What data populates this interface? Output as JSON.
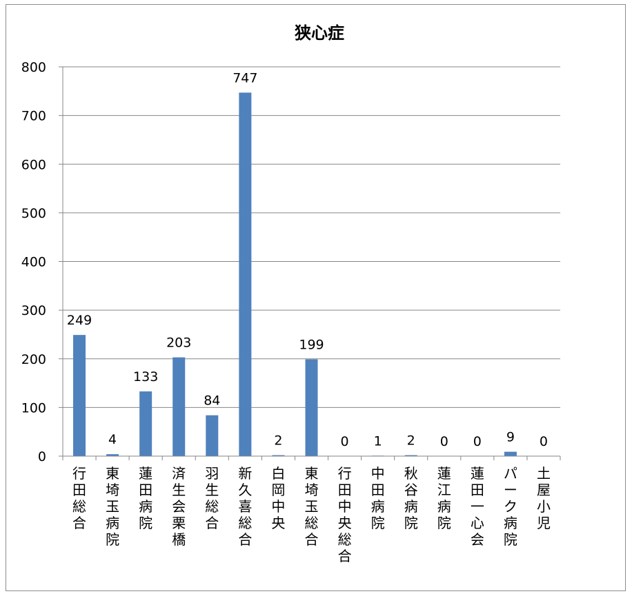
{
  "chart_data": {
    "type": "bar",
    "title": "狭心症",
    "categories": [
      "行田総合",
      "東埼玉病院",
      "蓮田病院",
      "済生会栗橋",
      "羽生総合",
      "新久喜総合",
      "白岡中央",
      "東埼玉総合",
      "行田中央総合",
      "中田病院",
      "秋谷病院",
      "蓮江病院",
      "蓮田一心会",
      "パーク病院",
      "土屋小児"
    ],
    "values": [
      249,
      4,
      133,
      203,
      84,
      747,
      2,
      199,
      0,
      1,
      2,
      0,
      0,
      9,
      0
    ],
    "yticks": [
      "0",
      "100",
      "200",
      "300",
      "400",
      "500",
      "600",
      "700",
      "800"
    ],
    "ylim": [
      0,
      800
    ],
    "grid": true,
    "legend": "none",
    "bar_color": "#4f81bd",
    "data_labels": true
  }
}
